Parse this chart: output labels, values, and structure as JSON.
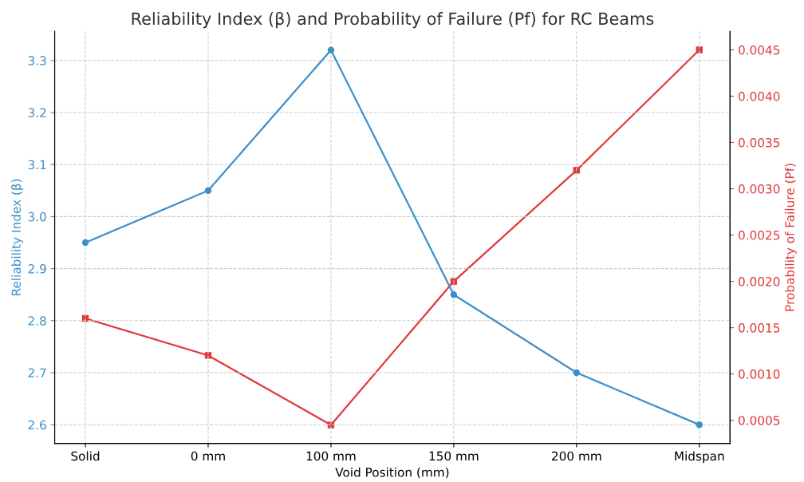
{
  "chart_data": {
    "type": "line",
    "title": "Reliability Index (β) and Probability of Failure (Pf) for RC Beams",
    "xlabel": "Void Position (mm)",
    "ylabel": "Reliability Index (β)",
    "y2label": "Probability of Failure (Pf)",
    "categories": [
      "Solid",
      "0 mm",
      "100 mm",
      "150 mm",
      "200 mm",
      "Midspan"
    ],
    "series": [
      {
        "color": "#3d8fc9",
        "marker": "circle",
        "values": [
          2.95,
          3.05,
          3.32,
          2.85,
          2.7,
          2.6
        ]
      },
      {
        "color": "#e0383a",
        "marker": "square",
        "axis": "y2",
        "values": [
          0.0016,
          0.0012,
          0.00045,
          0.002,
          0.0032,
          0.0045
        ]
      }
    ],
    "ylim": [
      2.564,
      3.356
    ],
    "yticks": [
      {
        "value": 2.6,
        "label": "2.6"
      },
      {
        "value": 2.7,
        "label": "2.7"
      },
      {
        "value": 2.8,
        "label": "2.8"
      },
      {
        "value": 2.9,
        "label": "2.9"
      },
      {
        "value": 3.0,
        "label": "3.0"
      },
      {
        "value": 3.1,
        "label": "3.1"
      },
      {
        "value": 3.2,
        "label": "3.2"
      },
      {
        "value": 3.3,
        "label": "3.3"
      }
    ],
    "y2lim": [
      0.00025,
      0.0047
    ],
    "y2ticks": [
      {
        "value": 0.0005,
        "label": "0.0005"
      },
      {
        "value": 0.001,
        "label": "0.0010"
      },
      {
        "value": 0.0015,
        "label": "0.0015"
      },
      {
        "value": 0.002,
        "label": "0.0020"
      },
      {
        "value": 0.0025,
        "label": "0.0025"
      },
      {
        "value": 0.003,
        "label": "0.0030"
      },
      {
        "value": 0.0035,
        "label": "0.0035"
      },
      {
        "value": 0.004,
        "label": "0.0040"
      },
      {
        "value": 0.0045,
        "label": "0.0045"
      }
    ],
    "grid": true,
    "line_style": "solid"
  }
}
